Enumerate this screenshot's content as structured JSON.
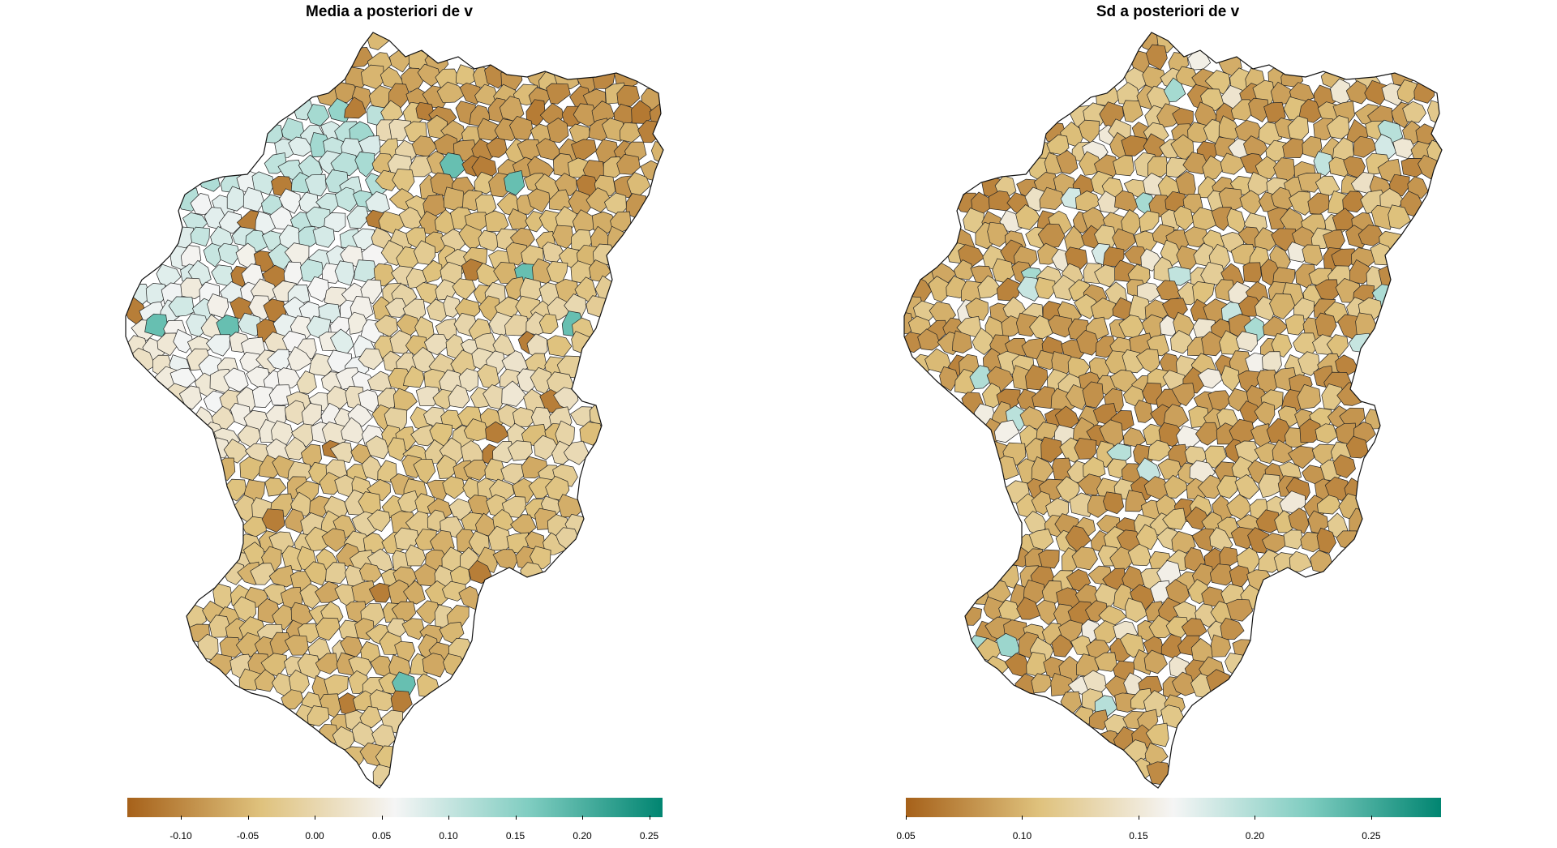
{
  "panels": [
    {
      "id": "left",
      "title": "Media a posteriori de v",
      "legend": {
        "min": -0.14,
        "max": 0.26,
        "ticks": [
          "-0.10",
          "-0.05",
          "0.00",
          "0.05",
          "0.10",
          "0.15",
          "0.20",
          "0.25"
        ],
        "tick_values": [
          -0.1,
          -0.05,
          0.0,
          0.05,
          0.1,
          0.15,
          0.2,
          0.25
        ],
        "colors": [
          "#a6611a",
          "#dfc27d",
          "#f5f5f5",
          "#80cdc1",
          "#018571"
        ]
      }
    },
    {
      "id": "right",
      "title": "Sd a posteriori de v",
      "legend": {
        "min": 0.05,
        "max": 0.28,
        "ticks": [
          "0.05",
          "0.10",
          "0.15",
          "0.20",
          "0.25"
        ],
        "tick_values": [
          0.05,
          0.1,
          0.15,
          0.2,
          0.25
        ],
        "colors": [
          "#a6611a",
          "#dfc27d",
          "#f5f5f5",
          "#80cdc1",
          "#018571"
        ]
      }
    }
  ]
}
